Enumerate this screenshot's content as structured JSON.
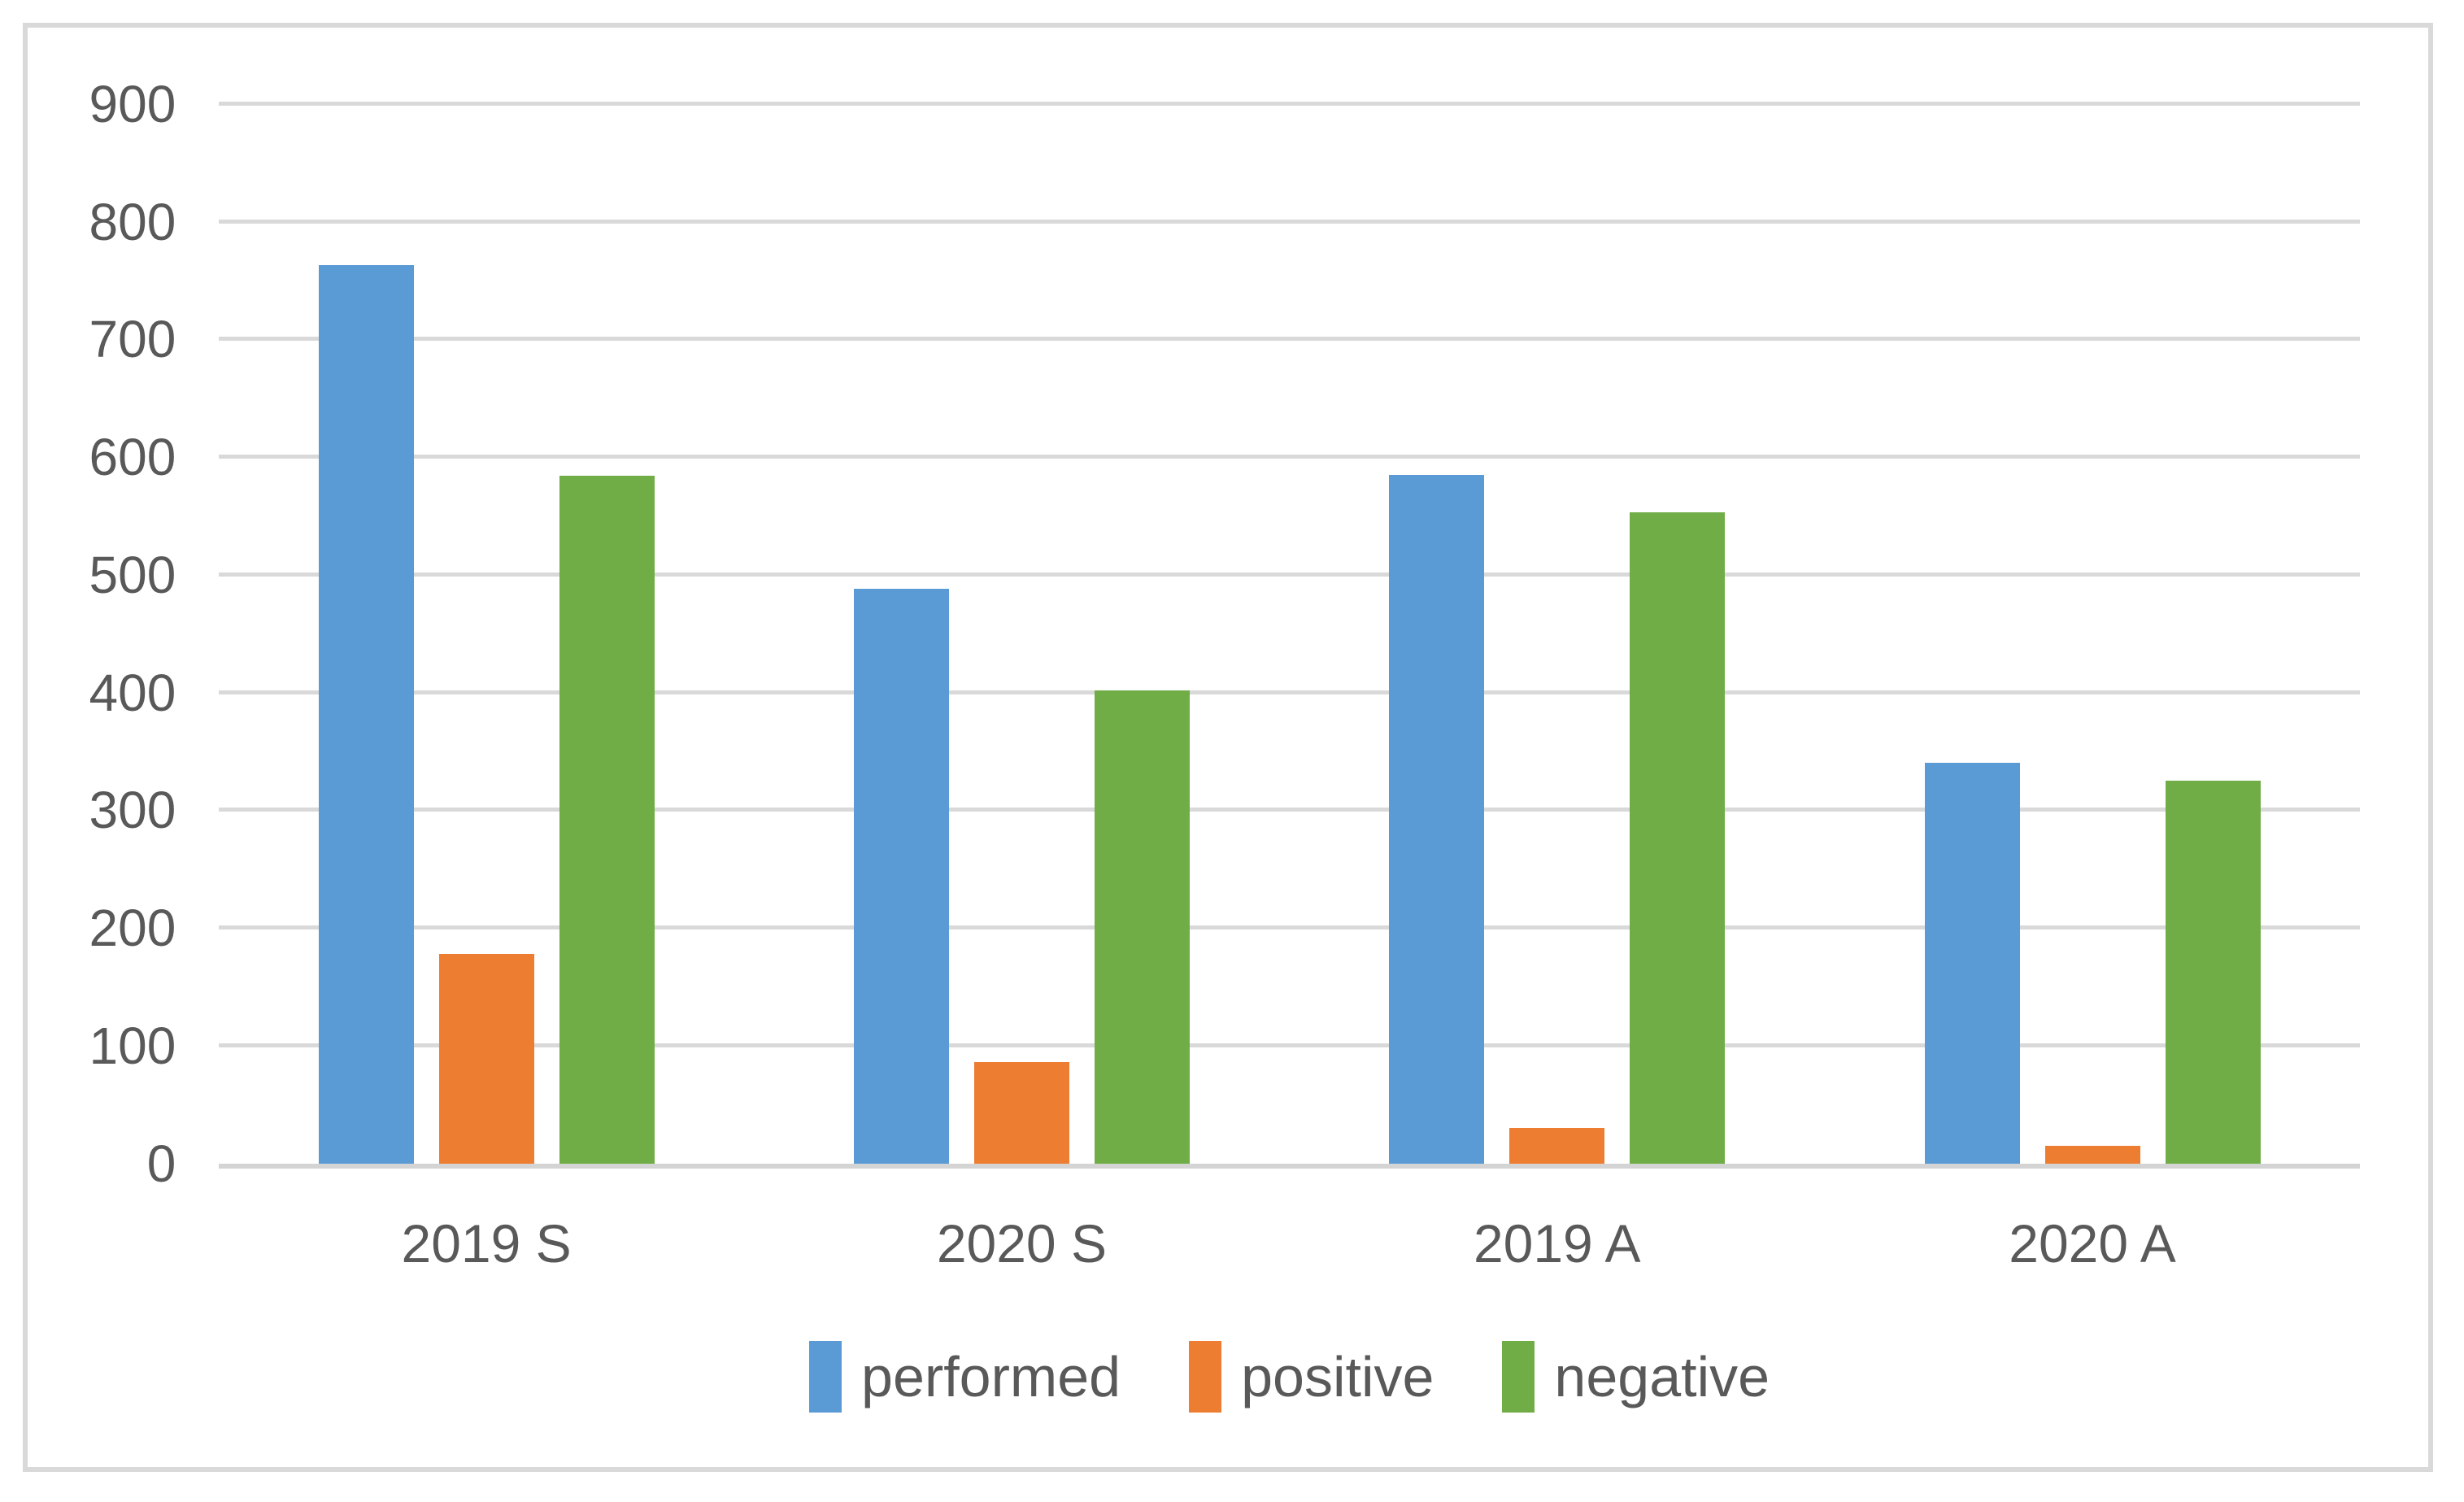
{
  "chart_data": {
    "type": "bar",
    "title": "",
    "categories": [
      "2019 S",
      "2020 S",
      "2019 A",
      "2020 A"
    ],
    "series": [
      {
        "name": "performed",
        "color": "#5B9BD5",
        "values": [
          763,
          488,
          585,
          340
        ]
      },
      {
        "name": "positive",
        "color": "#ED7D31",
        "values": [
          178,
          86,
          30,
          15
        ]
      },
      {
        "name": "negative",
        "color": "#70AD47",
        "values": [
          584,
          402,
          553,
          325
        ]
      }
    ],
    "xlabel": "",
    "ylabel": "",
    "ylim": [
      0,
      900
    ],
    "yticks": [
      0,
      100,
      200,
      300,
      400,
      500,
      600,
      700,
      800,
      900
    ],
    "grid": "horizontal",
    "legend_position": "bottom"
  },
  "colors": {
    "background": "#FFFFFF",
    "frame_border": "#D9D9D9",
    "gridline": "#D9D9D9",
    "axis_line": "#D4D4D4",
    "text": "#595959"
  }
}
